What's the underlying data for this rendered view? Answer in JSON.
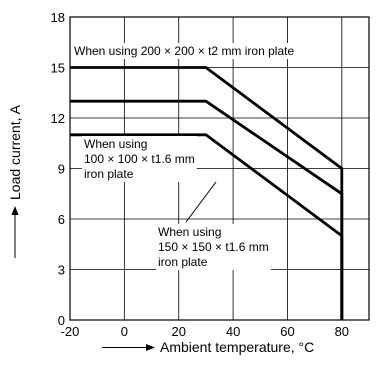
{
  "chart_data": {
    "type": "line",
    "title": "",
    "xlabel": "Ambient temperature, °C",
    "ylabel": "Load current, A",
    "xlim": [
      -20,
      90
    ],
    "ylim": [
      0,
      18
    ],
    "x_ticks": [
      -20,
      0,
      20,
      40,
      60,
      80
    ],
    "y_ticks": [
      0,
      3,
      6,
      9,
      12,
      15,
      18
    ],
    "grid": true,
    "series": [
      {
        "x": [
          -20,
          30,
          80,
          80
        ],
        "y": [
          15,
          15,
          9,
          0
        ]
      },
      {
        "x": [
          -20,
          30,
          80,
          80
        ],
        "y": [
          13,
          13,
          7.5,
          0
        ]
      },
      {
        "x": [
          -20,
          30,
          80,
          80
        ],
        "y": [
          11,
          11,
          5,
          0
        ]
      }
    ],
    "annotations": [
      {
        "lines": [
          "When using 200 × 200 × t2 mm iron plate"
        ]
      },
      {
        "lines": [
          "When using",
          "100 × 100 × t1.6 mm",
          "iron plate"
        ]
      },
      {
        "lines": [
          "When using",
          "150 × 150 × t1.6 mm",
          "iron plate"
        ]
      }
    ]
  }
}
